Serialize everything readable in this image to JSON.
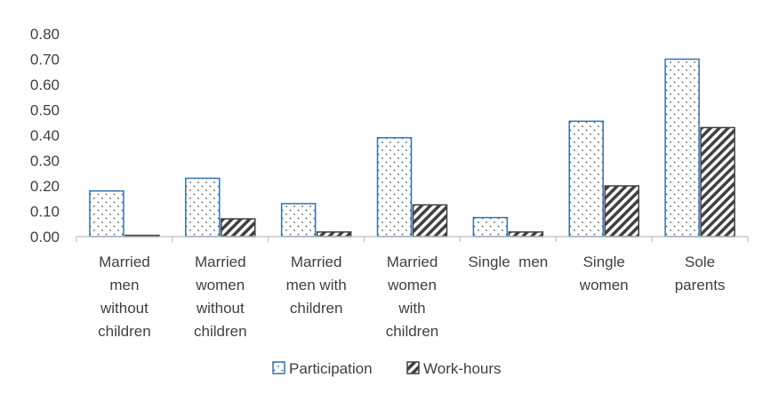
{
  "chart_data": {
    "type": "bar",
    "title": "",
    "xlabel": "",
    "ylabel": "",
    "ylim": [
      0,
      0.8
    ],
    "yticks": [
      "0.00",
      "0.10",
      "0.20",
      "0.30",
      "0.40",
      "0.50",
      "0.60",
      "0.70",
      "0.80"
    ],
    "grid": false,
    "legend_position": "bottom",
    "categories": [
      [
        "Married",
        "men",
        "without",
        "children"
      ],
      [
        "Married",
        "women",
        "without",
        "children"
      ],
      [
        "Married",
        "men with",
        "children"
      ],
      [
        "Married",
        "women",
        "with",
        "children"
      ],
      [
        "Single  men"
      ],
      [
        "Single",
        "women"
      ],
      [
        "Sole",
        "parents"
      ]
    ],
    "series": [
      {
        "name": "Participation",
        "values": [
          0.18,
          0.23,
          0.13,
          0.39,
          0.075,
          0.455,
          0.7
        ],
        "pattern": "dots",
        "color": "#2e75b6"
      },
      {
        "name": "Work-hours",
        "values": [
          0.005,
          0.07,
          0.018,
          0.125,
          0.018,
          0.2,
          0.43
        ],
        "pattern": "hatch",
        "color": "#404040"
      }
    ]
  }
}
